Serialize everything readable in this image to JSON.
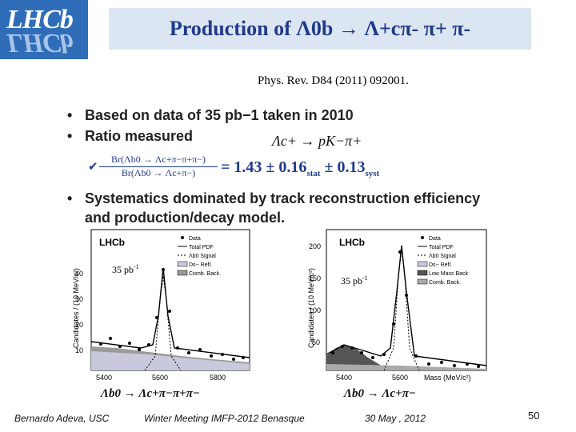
{
  "logo": {
    "text": "LHCb"
  },
  "title": "Production of Λ0b → Λ+cπ- π+ π-",
  "reference": "Phys. Rev. D84 (2011)  092001.",
  "bullets": {
    "b1": "Based on data of 35 pb−1 taken in 2010",
    "b2": "Ratio measured",
    "b4_line1": "Systematics dominated by track reconstruction efficiency",
    "b4_line2": "and production/decay model."
  },
  "decay_small": "Λc+ → pK−π+",
  "ratio": {
    "numerator": "Br(Λb0 → Λc+π−π+π−)",
    "denominator": "Br(Λb0 → Λc+π−)",
    "value": "= 1.43 ± 0.16",
    "stat_label": "stat",
    "syst": " ± 0.13",
    "syst_label": "syst"
  },
  "plot_left": {
    "experiment": "LHCb",
    "lumi": "35 pb",
    "lumi_sup": "-1",
    "ylabel": "Candidates / (10 MeV/c²)",
    "yticks": [
      "10",
      "20",
      "30",
      "40"
    ],
    "xticks": [
      "5400",
      "5600",
      "5800"
    ],
    "legend": [
      "Data",
      "Total PDF",
      "Λb0 Signal",
      "Ds− Refl.",
      "Comb. Back."
    ],
    "caption": "Λb0 → Λc+π−π+π−"
  },
  "plot_right": {
    "experiment": "LHCb",
    "lumi": "35 pb",
    "lumi_sup": "-1",
    "ylabel": "Candidates / (10 MeV/c²)",
    "yticks": [
      "50",
      "100",
      "150",
      "200"
    ],
    "xticks": [
      "5400",
      "5600"
    ],
    "xlabel": "Mass (MeV/c²)",
    "legend": [
      "Data",
      "Total PDF",
      "Λb0 Signal",
      "Ds− Refl.",
      "Low Mass Back",
      "Comb. Back."
    ],
    "caption": "Λb0 → Λc+π−"
  },
  "footer": {
    "author": "Bernardo Adeva, USC",
    "event": "Winter Meeting IMFP-2012  Benasque",
    "date": "30 May , 2012",
    "page": "50"
  },
  "colors": {
    "title": "#1f3a8a",
    "title_bg": "#dce6f2",
    "logo_bg": "#2f6db8"
  }
}
